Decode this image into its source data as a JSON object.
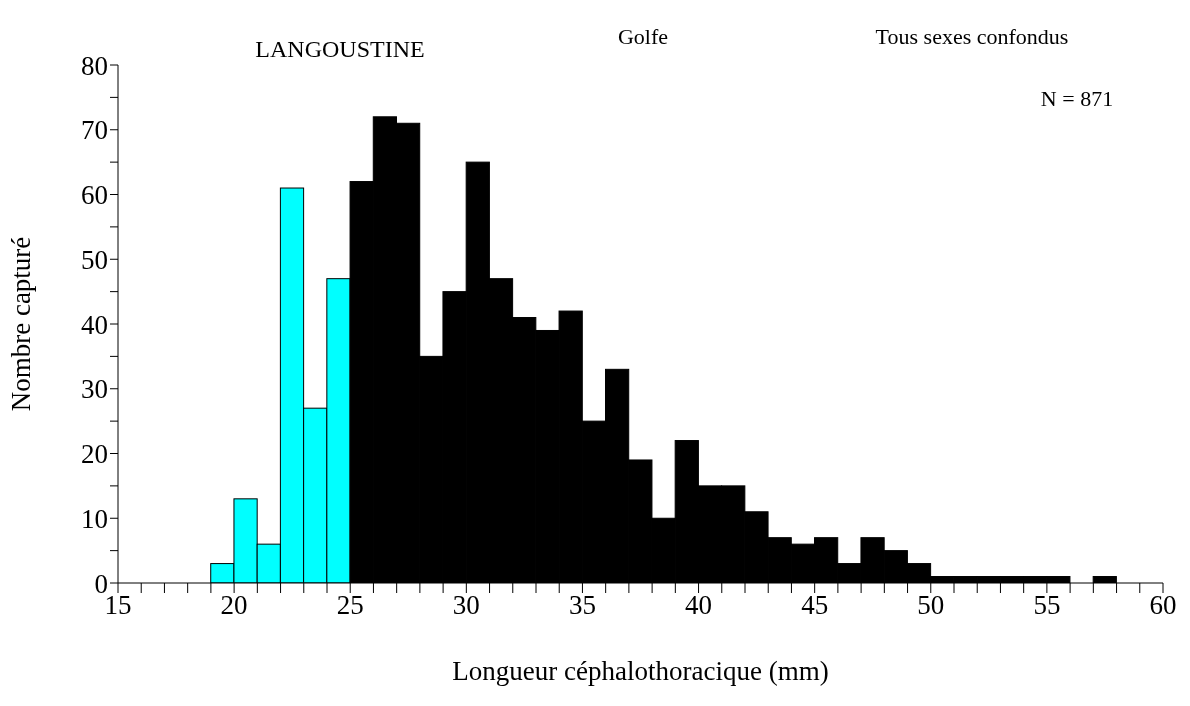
{
  "chart_data": {
    "type": "histogram",
    "xlabel": "Longueur céphalothoracique (mm)",
    "ylabel": "Nombre capturé",
    "annotations": [
      "LANGOUSTINE",
      "Golfe",
      "Tous sexes confondus",
      "N = 871"
    ],
    "bins": [
      19,
      20,
      21,
      22,
      23,
      24,
      25,
      26,
      27,
      28,
      29,
      30,
      31,
      32,
      33,
      34,
      35,
      36,
      37,
      38,
      39,
      40,
      41,
      42,
      43,
      44,
      45,
      46,
      47,
      48,
      49,
      50,
      51,
      52,
      53,
      54,
      55,
      56,
      57,
      58
    ],
    "values": [
      3,
      13,
      6,
      61,
      27,
      47,
      62,
      72,
      71,
      35,
      45,
      65,
      47,
      41,
      39,
      42,
      25,
      33,
      19,
      10,
      22,
      15,
      15,
      11,
      7,
      6,
      7,
      3,
      7,
      5,
      3,
      1,
      1,
      1,
      1,
      1,
      1,
      0,
      1
    ],
    "colors": [
      "#00ffff",
      "#00ffff",
      "#00ffff",
      "#00ffff",
      "#00ffff",
      "#00ffff",
      "#000000",
      "#000000",
      "#000000",
      "#000000",
      "#000000",
      "#000000",
      "#000000",
      "#000000",
      "#000000",
      "#000000",
      "#000000",
      "#000000",
      "#000000",
      "#000000",
      "#000000",
      "#000000",
      "#000000",
      "#000000",
      "#000000",
      "#000000",
      "#000000",
      "#000000",
      "#000000",
      "#000000",
      "#000000",
      "#000000",
      "#000000",
      "#000000",
      "#000000",
      "#000000",
      "#000000",
      "#000000",
      "#000000"
    ],
    "xlim": [
      15,
      60
    ],
    "xticks": [
      15,
      {
        "value": 16,
        "label": null
      },
      {
        "value": 17,
        "label": null
      },
      {
        "value": 18,
        "label": null
      },
      {
        "value": 19,
        "label": null
      },
      20,
      {
        "value": 21,
        "label": null
      },
      {
        "value": 22,
        "label": null
      },
      {
        "value": 23,
        "label": null
      },
      {
        "value": 24,
        "label": null
      },
      25,
      {
        "value": 26,
        "label": null
      },
      {
        "value": 27,
        "label": null
      },
      {
        "value": 28,
        "label": null
      },
      {
        "value": 29,
        "label": null
      },
      30,
      {
        "value": 31,
        "label": null
      },
      {
        "value": 32,
        "label": null
      },
      {
        "value": 33,
        "label": null
      },
      {
        "value": 34,
        "label": null
      },
      35,
      {
        "value": 36,
        "label": null
      },
      {
        "value": 37,
        "label": null
      },
      {
        "value": 38,
        "label": null
      },
      {
        "value": 39,
        "label": null
      },
      40,
      {
        "value": 41,
        "label": null
      },
      {
        "value": 42,
        "label": null
      },
      {
        "value": 43,
        "label": null
      },
      {
        "value": 44,
        "label": null
      },
      45,
      {
        "value": 46,
        "label": null
      },
      {
        "value": 47,
        "label": null
      },
      {
        "value": 48,
        "label": null
      },
      {
        "value": 49,
        "label": null
      },
      50,
      {
        "value": 51,
        "label": null
      },
      {
        "value": 52,
        "label": null
      },
      {
        "value": 53,
        "label": null
      },
      {
        "value": 54,
        "label": null
      },
      55,
      {
        "value": 56,
        "label": null
      },
      {
        "value": 57,
        "label": null
      },
      {
        "value": 58,
        "label": null
      },
      {
        "value": 59,
        "label": null
      },
      60
    ],
    "ylim": [
      0,
      80
    ],
    "yticks": [
      0,
      {
        "value": 5,
        "label": null
      },
      10,
      {
        "value": 15,
        "label": null
      },
      20,
      {
        "value": 25,
        "label": null
      },
      30,
      {
        "value": 35,
        "label": null
      },
      40,
      {
        "value": 45,
        "label": null
      },
      50,
      {
        "value": 55,
        "label": null
      },
      60,
      {
        "value": 65,
        "label": null
      },
      70,
      {
        "value": 75,
        "label": null
      },
      80
    ],
    "grid": false,
    "legend": false
  }
}
